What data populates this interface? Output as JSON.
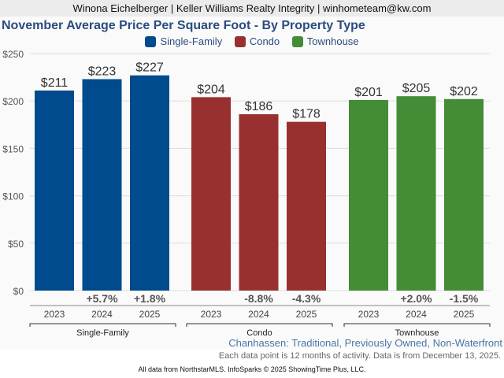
{
  "header": {
    "text": "Winona Eichelberger | Keller Williams Realty Integrity | winhometeam@kw.com"
  },
  "chart_data": {
    "type": "bar",
    "title": "November Average Price Per Square Foot - By Property Type",
    "ylim": [
      0,
      250
    ],
    "yticks": [
      0,
      50,
      100,
      150,
      200,
      250
    ],
    "ytick_labels": [
      "$0",
      "$50",
      "$100",
      "$150",
      "$200",
      "$250"
    ],
    "legend_position": "top-center",
    "series": [
      {
        "name": "Single-Family",
        "color": "#004b8d",
        "categories": [
          "2023",
          "2024",
          "2025"
        ],
        "values": [
          211,
          223,
          227
        ],
        "value_labels": [
          "$211",
          "$223",
          "$227"
        ],
        "changes": [
          "",
          "+5.7%",
          "+1.8%"
        ]
      },
      {
        "name": "Condo",
        "color": "#993030",
        "categories": [
          "2023",
          "2024",
          "2025"
        ],
        "values": [
          204,
          186,
          178
        ],
        "value_labels": [
          "$204",
          "$186",
          "$178"
        ],
        "changes": [
          "",
          "-8.8%",
          "-4.3%"
        ]
      },
      {
        "name": "Townhouse",
        "color": "#448c35",
        "categories": [
          "2023",
          "2024",
          "2025"
        ],
        "values": [
          201,
          205,
          202
        ],
        "value_labels": [
          "$201",
          "$205",
          "$202"
        ],
        "changes": [
          "",
          "+2.0%",
          "-1.5%"
        ]
      }
    ]
  },
  "subtitle": "Chanhassen: Traditional, Previously Owned, Non-Waterfront",
  "note": "Each data point is 12 months of activity. Data is from December 13, 2025.",
  "footer": "All data from NorthstarMLS. InfoSparks © 2025 ShowingTime Plus, LLC."
}
